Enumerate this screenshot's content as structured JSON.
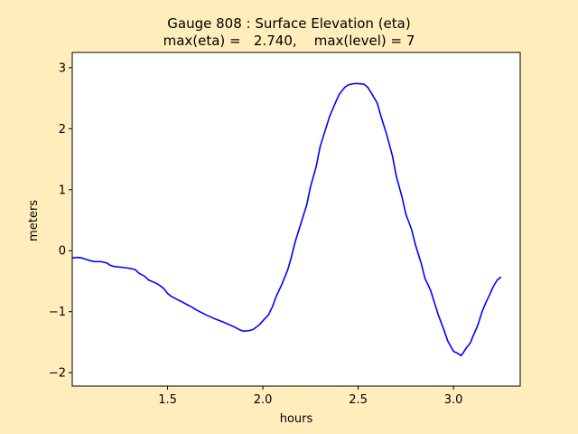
{
  "chart_data": {
    "type": "line",
    "title": "Gauge 808 : Surface Elevation (eta)",
    "subtitle": "max(eta) =   2.740,    max(level) = 7",
    "xlabel": "hours",
    "ylabel": "meters",
    "xlim": [
      1.0,
      3.35
    ],
    "ylim": [
      -2.22,
      3.25
    ],
    "xticks": [
      "1.5",
      "2.0",
      "2.5",
      "3.0"
    ],
    "xtick_values": [
      1.5,
      2.0,
      2.5,
      3.0
    ],
    "yticks": [
      "−2",
      "−1",
      "0",
      "1",
      "2",
      "3"
    ],
    "ytick_values": [
      -2,
      -1,
      0,
      1,
      2,
      3
    ],
    "grid": false,
    "legend": "none",
    "line_color": "#0000ff",
    "series": [
      {
        "x": [
          1.0,
          1.03,
          1.05,
          1.08,
          1.1,
          1.12,
          1.15,
          1.18,
          1.2,
          1.22,
          1.25,
          1.28,
          1.3,
          1.33,
          1.35,
          1.38,
          1.4,
          1.43,
          1.45,
          1.48,
          1.5,
          1.52,
          1.55,
          1.57,
          1.6,
          1.63,
          1.65,
          1.7,
          1.75,
          1.8,
          1.85,
          1.88,
          1.9,
          1.93,
          1.95,
          1.98,
          2.0,
          2.03,
          2.05,
          2.07,
          2.1,
          2.13,
          2.15,
          2.17,
          2.2,
          2.23,
          2.25,
          2.28,
          2.3,
          2.33,
          2.35,
          2.38,
          2.4,
          2.43,
          2.45,
          2.48,
          2.5,
          2.53,
          2.55,
          2.57,
          2.6,
          2.62,
          2.65,
          2.68,
          2.7,
          2.73,
          2.75,
          2.78,
          2.8,
          2.83,
          2.85,
          2.88,
          2.9,
          2.92,
          2.95,
          2.97,
          3.0,
          3.02,
          3.04,
          3.05,
          3.07,
          3.08,
          3.09,
          3.1,
          3.11,
          3.12,
          3.13,
          3.15,
          3.17,
          3.19,
          3.21,
          3.23,
          3.25
        ],
        "y": [
          -0.12,
          -0.11,
          -0.12,
          -0.15,
          -0.17,
          -0.18,
          -0.18,
          -0.2,
          -0.24,
          -0.26,
          -0.27,
          -0.28,
          -0.29,
          -0.31,
          -0.37,
          -0.42,
          -0.48,
          -0.52,
          -0.55,
          -0.62,
          -0.7,
          -0.75,
          -0.8,
          -0.83,
          -0.88,
          -0.93,
          -0.97,
          -1.05,
          -1.12,
          -1.18,
          -1.25,
          -1.3,
          -1.32,
          -1.31,
          -1.29,
          -1.22,
          -1.15,
          -1.05,
          -0.92,
          -0.75,
          -0.55,
          -0.32,
          -0.1,
          0.15,
          0.45,
          0.75,
          1.05,
          1.38,
          1.7,
          2.0,
          2.2,
          2.42,
          2.56,
          2.68,
          2.72,
          2.74,
          2.74,
          2.73,
          2.68,
          2.58,
          2.42,
          2.2,
          1.9,
          1.55,
          1.22,
          0.88,
          0.6,
          0.35,
          0.1,
          -0.2,
          -0.45,
          -0.65,
          -0.85,
          -1.05,
          -1.3,
          -1.48,
          -1.65,
          -1.68,
          -1.72,
          -1.68,
          -1.58,
          -1.55,
          -1.5,
          -1.42,
          -1.35,
          -1.28,
          -1.2,
          -1.0,
          -0.85,
          -0.72,
          -0.58,
          -0.48,
          -0.43
        ]
      }
    ]
  }
}
